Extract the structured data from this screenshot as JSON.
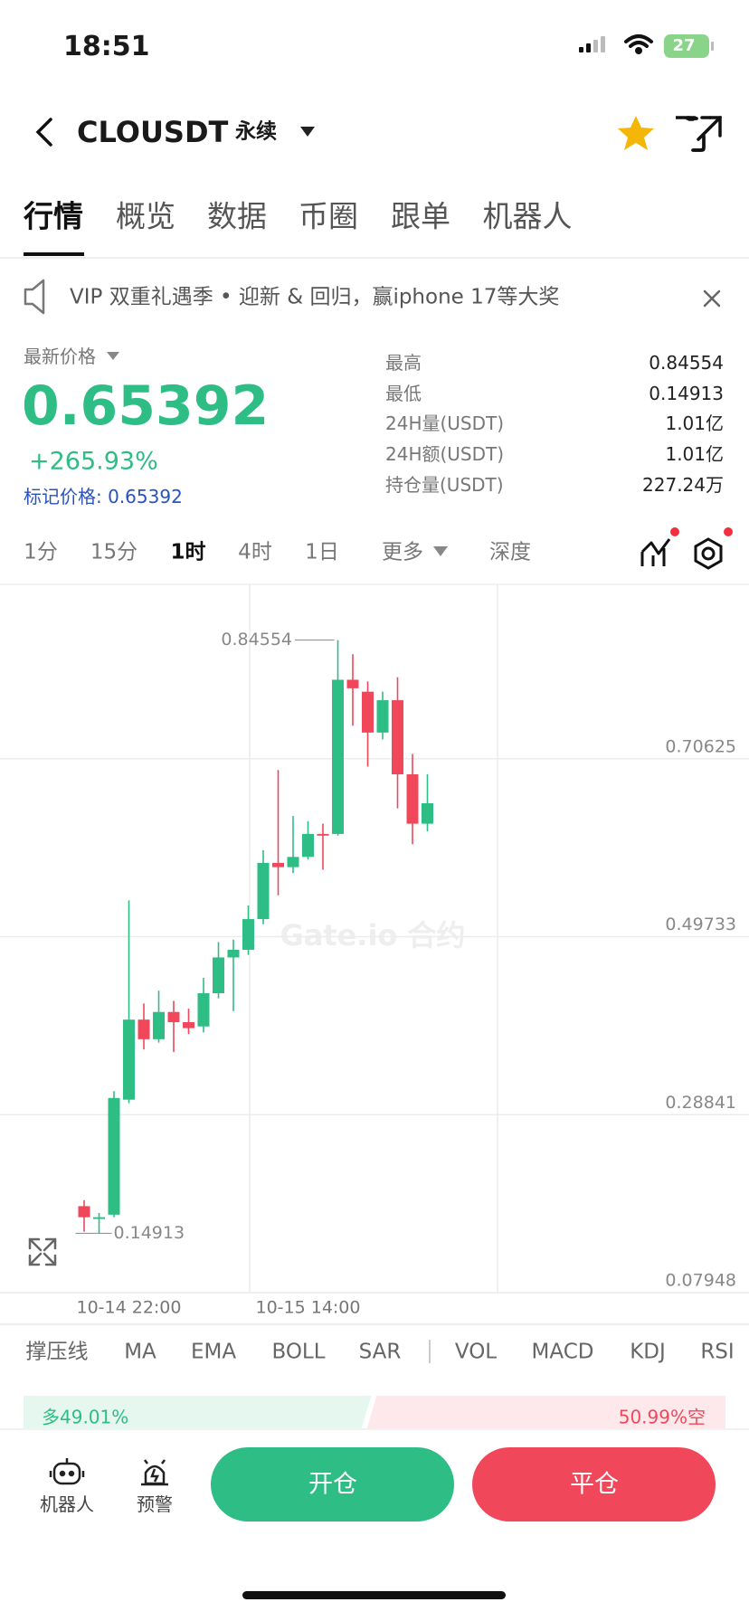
{
  "status_bar": {
    "time": "18:51",
    "battery": "27"
  },
  "header": {
    "symbol": "CLOUSDT",
    "contract": "永续"
  },
  "tabs": [
    "行情",
    "概览",
    "数据",
    "币圈",
    "跟单",
    "机器人"
  ],
  "banner": {
    "text": "VIP 双重礼遇季 • 迎新 & 回归，赢iphone 17等大奖"
  },
  "price": {
    "label": "最新价格",
    "last": "0.65392",
    "change": "+265.93%",
    "mark": "标记价格: 0.65392"
  },
  "stats": [
    {
      "label": "最高",
      "value": "0.84554"
    },
    {
      "label": "最低",
      "value": "0.14913"
    },
    {
      "label": "24H量(USDT)",
      "value": "1.01亿"
    },
    {
      "label": "24H额(USDT)",
      "value": "1.01亿"
    },
    {
      "label": "持仓量(USDT)",
      "value": "227.24万"
    }
  ],
  "intervals": [
    "1分",
    "15分",
    "1时",
    "4时",
    "1日",
    "更多",
    "深度"
  ],
  "chart_data": {
    "type": "candlestick",
    "categories": [
      null,
      null,
      null,
      "10-14 22:00",
      null,
      null,
      null,
      null,
      null,
      null,
      null,
      null,
      null,
      null,
      null,
      "10-15 14:00",
      null,
      null,
      null,
      null,
      null,
      null,
      null,
      null
    ],
    "open": [
      0.181,
      0.166,
      0.171,
      0.306,
      0.4,
      0.377,
      0.409,
      0.397,
      0.392,
      0.431,
      0.473,
      0.482,
      0.518,
      0.584,
      0.579,
      0.591,
      0.618,
      0.618,
      0.799,
      0.785,
      0.737,
      0.775,
      0.688,
      0.63
    ],
    "high": [
      0.188,
      0.173,
      0.316,
      0.54,
      0.419,
      0.434,
      0.422,
      0.413,
      0.449,
      0.491,
      0.494,
      0.534,
      0.599,
      0.693,
      0.639,
      0.633,
      0.63,
      0.84554,
      0.829,
      0.797,
      0.785,
      0.802,
      0.712,
      0.688
    ],
    "low": [
      0.151,
      0.14913,
      0.168,
      0.302,
      0.365,
      0.373,
      0.362,
      0.383,
      0.385,
      0.425,
      0.41,
      0.476,
      0.512,
      0.546,
      0.572,
      0.588,
      0.576,
      0.616,
      0.745,
      0.697,
      0.729,
      0.648,
      0.606,
      0.621
    ],
    "close": [
      0.168,
      0.168,
      0.308,
      0.4,
      0.377,
      0.409,
      0.397,
      0.39,
      0.431,
      0.473,
      0.482,
      0.518,
      0.584,
      0.579,
      0.591,
      0.618,
      0.616,
      0.799,
      0.789,
      0.737,
      0.775,
      0.688,
      0.63,
      0.654
    ],
    "up_color": "#2ebd85",
    "down_color": "#f0475b",
    "ylim": [
      0.07948,
      0.911
    ],
    "yticks": [
      0.70625,
      0.49733,
      0.28841,
      0.07948
    ],
    "grid": true,
    "high_annotation": 0.84554,
    "low_annotation": 0.14913,
    "watermark": "Gate.io 合约"
  },
  "indicators": [
    "撑压线",
    "MA",
    "EMA",
    "BOLL",
    "SAR",
    "VOL",
    "MACD",
    "KDJ",
    "RSI"
  ],
  "ratio": {
    "values": [
      49.01,
      50.99
    ],
    "value_labels": [
      "多49.01%",
      "50.99%空"
    ],
    "colors": [
      "#2ebd85",
      "#f0475b"
    ]
  },
  "bottom_bar": {
    "robot": "机器人",
    "alert": "预警",
    "open": "开仓",
    "close": "平仓"
  }
}
